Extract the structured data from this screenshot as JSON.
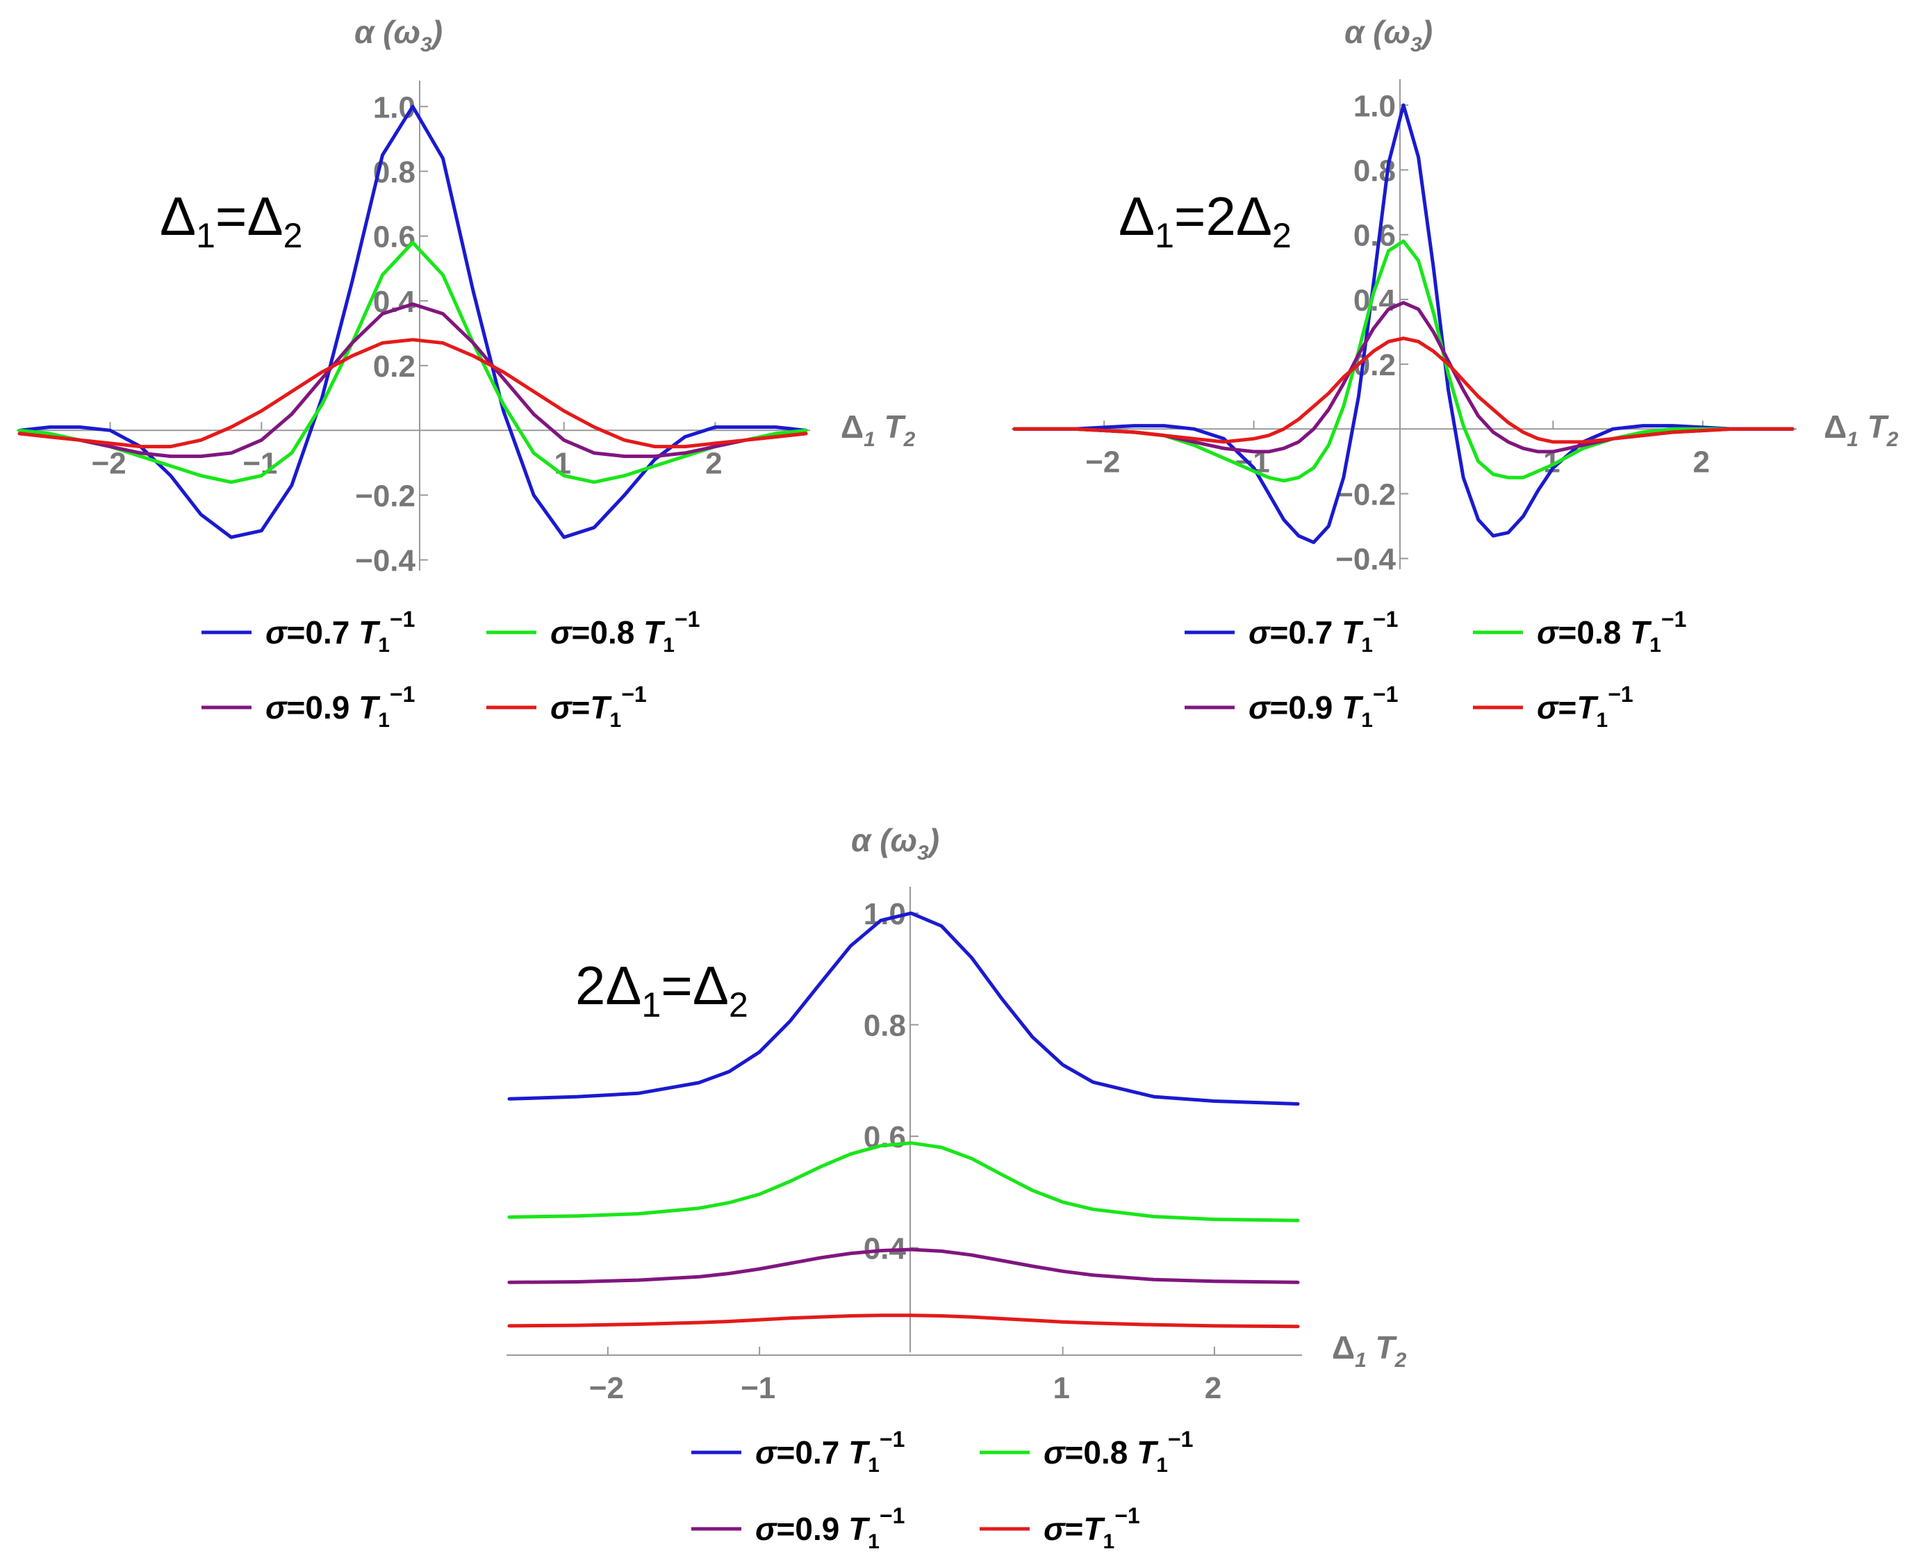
{
  "chart_data": [
    {
      "type": "line",
      "annotation": {
        "main": "Δ",
        "sub1": "1",
        "mid": "=Δ",
        "sub2": "2"
      },
      "xlabel": {
        "main": "Δ",
        "sub1": "1",
        "mid": " T",
        "sub2": "2"
      },
      "ylabel": {
        "main": "α (ω",
        "sub": "3",
        "end": ")"
      },
      "xlim": [
        -2.6,
        2.6
      ],
      "ylim": [
        -0.42,
        1.05
      ],
      "xticks": [
        {
          "v": -2,
          "label": "−2"
        },
        {
          "v": -1,
          "label": "−1"
        },
        {
          "v": 1,
          "label": "1"
        },
        {
          "v": 2,
          "label": "2"
        }
      ],
      "yticks": [
        {
          "v": -0.4,
          "label": "−0.4"
        },
        {
          "v": -0.2,
          "label": "−0.2"
        },
        {
          "v": 0.2,
          "label": "0.2"
        },
        {
          "v": 0.4,
          "label": "0.4"
        },
        {
          "v": 0.6,
          "label": "0.6"
        },
        {
          "v": 0.8,
          "label": "0.8"
        },
        {
          "v": 1.0,
          "label": "1.0"
        }
      ],
      "series": [
        {
          "name": "σ=0.7 T1⁻¹",
          "color": "#1a1ad0",
          "x": [
            -2.6,
            -2.4,
            -2.2,
            -2.0,
            -1.8,
            -1.6,
            -1.4,
            -1.2,
            -1.0,
            -0.8,
            -0.6,
            -0.4,
            -0.2,
            0.0,
            0.2,
            0.4,
            0.6,
            0.8,
            1.0,
            1.2,
            1.4,
            1.6,
            1.8,
            2.0,
            2.2,
            2.4,
            2.6
          ],
          "values": [
            0.0,
            0.01,
            0.01,
            0.0,
            -0.05,
            -0.14,
            -0.26,
            -0.33,
            -0.31,
            -0.17,
            0.1,
            0.46,
            0.85,
            1.0,
            0.84,
            0.43,
            0.06,
            -0.2,
            -0.33,
            -0.3,
            -0.2,
            -0.09,
            -0.02,
            0.01,
            0.01,
            0.01,
            0.0
          ]
        },
        {
          "name": "σ=0.8 T1⁻¹",
          "color": "#19e619",
          "x": [
            -2.6,
            -2.4,
            -2.2,
            -2.0,
            -1.8,
            -1.6,
            -1.4,
            -1.2,
            -1.0,
            -0.8,
            -0.6,
            -0.4,
            -0.2,
            0.0,
            0.2,
            0.4,
            0.6,
            0.8,
            1.0,
            1.2,
            1.4,
            1.6,
            1.8,
            2.0,
            2.2,
            2.4,
            2.6
          ],
          "values": [
            0.0,
            -0.01,
            -0.03,
            -0.05,
            -0.08,
            -0.11,
            -0.14,
            -0.16,
            -0.14,
            -0.07,
            0.08,
            0.27,
            0.48,
            0.58,
            0.48,
            0.27,
            0.08,
            -0.07,
            -0.14,
            -0.16,
            -0.14,
            -0.11,
            -0.08,
            -0.05,
            -0.03,
            -0.01,
            0.0
          ]
        },
        {
          "name": "σ=0.9 T1⁻¹",
          "color": "#80167f",
          "x": [
            -2.6,
            -2.4,
            -2.2,
            -2.0,
            -1.8,
            -1.6,
            -1.4,
            -1.2,
            -1.0,
            -0.8,
            -0.6,
            -0.4,
            -0.2,
            0.0,
            0.2,
            0.4,
            0.6,
            0.8,
            1.0,
            1.2,
            1.4,
            1.6,
            1.8,
            2.0,
            2.2,
            2.4,
            2.6
          ],
          "values": [
            -0.01,
            -0.02,
            -0.03,
            -0.05,
            -0.07,
            -0.08,
            -0.08,
            -0.07,
            -0.03,
            0.05,
            0.16,
            0.27,
            0.36,
            0.39,
            0.36,
            0.27,
            0.16,
            0.05,
            -0.03,
            -0.07,
            -0.08,
            -0.08,
            -0.07,
            -0.05,
            -0.03,
            -0.02,
            -0.01
          ]
        },
        {
          "name": "σ=T1⁻¹",
          "color": "#e41a1a",
          "x": [
            -2.6,
            -2.4,
            -2.2,
            -2.0,
            -1.8,
            -1.6,
            -1.4,
            -1.2,
            -1.0,
            -0.8,
            -0.6,
            -0.4,
            -0.2,
            0.0,
            0.2,
            0.4,
            0.6,
            0.8,
            1.0,
            1.2,
            1.4,
            1.6,
            1.8,
            2.0,
            2.2,
            2.4,
            2.6
          ],
          "values": [
            -0.01,
            -0.02,
            -0.03,
            -0.04,
            -0.05,
            -0.05,
            -0.03,
            0.01,
            0.06,
            0.12,
            0.18,
            0.23,
            0.27,
            0.28,
            0.27,
            0.23,
            0.18,
            0.12,
            0.06,
            0.01,
            -0.03,
            -0.05,
            -0.05,
            -0.04,
            -0.03,
            -0.02,
            -0.01
          ]
        }
      ]
    },
    {
      "type": "line",
      "annotation": {
        "main": "Δ",
        "sub1": "1",
        "mid": "=2Δ",
        "sub2": "2"
      },
      "xlabel": {
        "main": "Δ",
        "sub1": "1",
        "mid": " T",
        "sub2": "2"
      },
      "ylabel": {
        "main": "α (ω",
        "sub": "3",
        "end": ")"
      },
      "xlim": [
        -2.6,
        2.6
      ],
      "ylim": [
        -0.42,
        1.05
      ],
      "xticks": [
        {
          "v": -2,
          "label": "−2"
        },
        {
          "v": -1,
          "label": "−1"
        },
        {
          "v": 1,
          "label": "1"
        },
        {
          "v": 2,
          "label": "2"
        }
      ],
      "yticks": [
        {
          "v": -0.4,
          "label": "−0.4"
        },
        {
          "v": -0.2,
          "label": "−0.2"
        },
        {
          "v": 0.2,
          "label": "0.2"
        },
        {
          "v": 0.4,
          "label": "0.4"
        },
        {
          "v": 0.6,
          "label": "0.6"
        },
        {
          "v": 0.8,
          "label": "0.8"
        },
        {
          "v": 1.0,
          "label": "1.0"
        }
      ],
      "series": [
        {
          "name": "σ=0.7 T1⁻¹",
          "color": "#1a1ad0",
          "x": [
            -2.6,
            -2.2,
            -1.8,
            -1.6,
            -1.4,
            -1.2,
            -1.0,
            -0.9,
            -0.8,
            -0.7,
            -0.6,
            -0.5,
            -0.4,
            -0.3,
            -0.2,
            -0.1,
            0.0,
            0.1,
            0.2,
            0.3,
            0.4,
            0.5,
            0.6,
            0.7,
            0.8,
            0.9,
            1.0,
            1.2,
            1.4,
            1.6,
            1.8,
            2.2,
            2.6
          ],
          "values": [
            0.0,
            0.0,
            0.01,
            0.01,
            0.0,
            -0.03,
            -0.12,
            -0.2,
            -0.28,
            -0.33,
            -0.35,
            -0.3,
            -0.15,
            0.1,
            0.45,
            0.82,
            1.0,
            0.84,
            0.5,
            0.12,
            -0.15,
            -0.28,
            -0.33,
            -0.32,
            -0.27,
            -0.19,
            -0.12,
            -0.04,
            0.0,
            0.01,
            0.01,
            0.0,
            0.0
          ]
        },
        {
          "name": "σ=0.8 T1⁻¹",
          "color": "#19e619",
          "x": [
            -2.6,
            -2.2,
            -1.8,
            -1.6,
            -1.4,
            -1.2,
            -1.0,
            -0.9,
            -0.8,
            -0.7,
            -0.6,
            -0.5,
            -0.4,
            -0.3,
            -0.2,
            -0.1,
            0.0,
            0.1,
            0.2,
            0.3,
            0.4,
            0.5,
            0.6,
            0.7,
            0.8,
            0.9,
            1.0,
            1.2,
            1.4,
            1.6,
            1.8,
            2.2,
            2.6
          ],
          "values": [
            0.0,
            0.0,
            -0.01,
            -0.02,
            -0.05,
            -0.09,
            -0.13,
            -0.15,
            -0.16,
            -0.15,
            -0.12,
            -0.05,
            0.07,
            0.24,
            0.42,
            0.55,
            0.58,
            0.52,
            0.36,
            0.17,
            0.01,
            -0.1,
            -0.14,
            -0.15,
            -0.15,
            -0.13,
            -0.11,
            -0.06,
            -0.03,
            -0.01,
            0.0,
            0.0,
            0.0
          ]
        },
        {
          "name": "σ=0.9 T1⁻¹",
          "color": "#80167f",
          "x": [
            -2.6,
            -2.2,
            -1.8,
            -1.6,
            -1.4,
            -1.2,
            -1.0,
            -0.9,
            -0.8,
            -0.7,
            -0.6,
            -0.5,
            -0.4,
            -0.3,
            -0.2,
            -0.1,
            0.0,
            0.1,
            0.2,
            0.3,
            0.4,
            0.5,
            0.6,
            0.7,
            0.8,
            0.9,
            1.0,
            1.2,
            1.4,
            1.6,
            1.8,
            2.2,
            2.6
          ],
          "values": [
            0.0,
            0.0,
            -0.01,
            -0.02,
            -0.04,
            -0.06,
            -0.07,
            -0.07,
            -0.06,
            -0.04,
            0.0,
            0.06,
            0.14,
            0.23,
            0.31,
            0.37,
            0.39,
            0.37,
            0.3,
            0.21,
            0.12,
            0.04,
            -0.01,
            -0.04,
            -0.06,
            -0.07,
            -0.07,
            -0.05,
            -0.03,
            -0.02,
            -0.01,
            0.0,
            0.0
          ]
        },
        {
          "name": "σ=T1⁻¹",
          "color": "#e41a1a",
          "x": [
            -2.6,
            -2.2,
            -1.8,
            -1.6,
            -1.4,
            -1.2,
            -1.0,
            -0.9,
            -0.8,
            -0.7,
            -0.6,
            -0.5,
            -0.4,
            -0.3,
            -0.2,
            -0.1,
            0.0,
            0.1,
            0.2,
            0.3,
            0.4,
            0.5,
            0.6,
            0.7,
            0.8,
            0.9,
            1.0,
            1.2,
            1.4,
            1.6,
            1.8,
            2.2,
            2.6
          ],
          "values": [
            0.0,
            0.0,
            -0.01,
            -0.02,
            -0.03,
            -0.04,
            -0.03,
            -0.02,
            0.0,
            0.03,
            0.07,
            0.11,
            0.16,
            0.2,
            0.24,
            0.27,
            0.28,
            0.27,
            0.24,
            0.2,
            0.15,
            0.1,
            0.06,
            0.02,
            -0.01,
            -0.03,
            -0.04,
            -0.04,
            -0.03,
            -0.02,
            -0.01,
            0.0,
            0.0
          ]
        }
      ]
    },
    {
      "type": "line",
      "annotation": {
        "main": "2Δ",
        "sub1": "1",
        "mid": "=Δ",
        "sub2": "2"
      },
      "xlabel": {
        "main": "Δ",
        "sub1": "1",
        "mid": " T",
        "sub2": "2"
      },
      "ylabel": {
        "main": "α (ω",
        "sub": "3",
        "end": ")"
      },
      "xlim": [
        -2.65,
        2.55
      ],
      "ylim": [
        0.22,
        1.03
      ],
      "xticks": [
        {
          "v": -2,
          "label": "−2"
        },
        {
          "v": -1,
          "label": "−1"
        },
        {
          "v": 1,
          "label": "1"
        },
        {
          "v": 2,
          "label": "2"
        }
      ],
      "yticks": [
        {
          "v": 0.4,
          "label": "0.4"
        },
        {
          "v": 0.6,
          "label": "0.6"
        },
        {
          "v": 0.8,
          "label": "0.8"
        },
        {
          "v": 1.0,
          "label": "1.0"
        }
      ],
      "series": [
        {
          "name": "σ=0.7 T1⁻¹",
          "color": "#1a1ad0",
          "x": [
            -2.65,
            -2.2,
            -1.8,
            -1.4,
            -1.2,
            -1.0,
            -0.8,
            -0.6,
            -0.4,
            -0.2,
            0.0,
            0.2,
            0.4,
            0.6,
            0.8,
            1.0,
            1.2,
            1.6,
            2.0,
            2.55
          ],
          "values": [
            0.667,
            0.671,
            0.677,
            0.696,
            0.716,
            0.751,
            0.806,
            0.874,
            0.941,
            0.987,
            1.0,
            0.977,
            0.92,
            0.846,
            0.778,
            0.728,
            0.697,
            0.671,
            0.663,
            0.658
          ]
        },
        {
          "name": "σ=0.8 T1⁻¹",
          "color": "#19e619",
          "x": [
            -2.65,
            -2.2,
            -1.8,
            -1.4,
            -1.2,
            -1.0,
            -0.8,
            -0.6,
            -0.4,
            -0.2,
            0.0,
            0.2,
            0.4,
            0.6,
            0.8,
            1.0,
            1.2,
            1.6,
            2.0,
            2.55
          ],
          "values": [
            0.455,
            0.457,
            0.461,
            0.471,
            0.481,
            0.496,
            0.519,
            0.545,
            0.568,
            0.583,
            0.588,
            0.58,
            0.56,
            0.531,
            0.503,
            0.482,
            0.469,
            0.456,
            0.451,
            0.449
          ]
        },
        {
          "name": "σ=0.9 T1⁻¹",
          "color": "#80167f",
          "x": [
            -2.65,
            -2.2,
            -1.8,
            -1.4,
            -1.2,
            -1.0,
            -0.8,
            -0.6,
            -0.4,
            -0.2,
            0.0,
            0.2,
            0.4,
            0.6,
            0.8,
            1.0,
            1.2,
            1.6,
            2.0,
            2.55
          ],
          "values": [
            0.338,
            0.339,
            0.342,
            0.348,
            0.354,
            0.362,
            0.372,
            0.382,
            0.39,
            0.395,
            0.397,
            0.394,
            0.387,
            0.377,
            0.367,
            0.358,
            0.351,
            0.343,
            0.34,
            0.338
          ]
        },
        {
          "name": "σ=T1⁻¹",
          "color": "#e41a1a",
          "x": [
            -2.65,
            -2.2,
            -1.8,
            -1.4,
            -1.2,
            -1.0,
            -0.8,
            -0.6,
            -0.4,
            -0.2,
            0.0,
            0.2,
            0.4,
            0.6,
            0.8,
            1.0,
            1.2,
            1.6,
            2.0,
            2.55
          ],
          "values": [
            0.26,
            0.261,
            0.263,
            0.266,
            0.268,
            0.271,
            0.274,
            0.276,
            0.278,
            0.279,
            0.279,
            0.278,
            0.276,
            0.273,
            0.27,
            0.267,
            0.265,
            0.262,
            0.26,
            0.259
          ]
        }
      ]
    }
  ],
  "legend": [
    {
      "pre": "σ=0.7 ",
      "t": "T",
      "sub": "1",
      "sup": "−1"
    },
    {
      "pre": "σ=0.8 ",
      "t": "T",
      "sub": "1",
      "sup": "−1"
    },
    {
      "pre": "σ=0.9 ",
      "t": "T",
      "sub": "1",
      "sup": "−1"
    },
    {
      "pre": "σ=",
      "t": "T",
      "sub": "1",
      "sup": "−1"
    }
  ]
}
